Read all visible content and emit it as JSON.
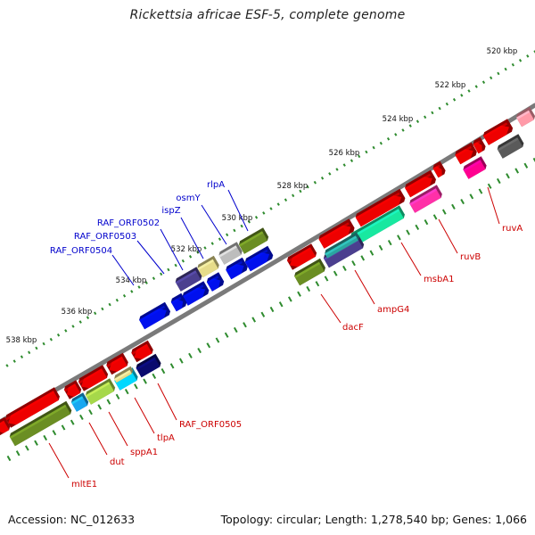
{
  "title": "Rickettsia africae ESF-5, complete genome",
  "footer": {
    "accession": "Accession: NC_012633",
    "summary": "Topology: circular; Length: 1,278,540 bp; Genes: 1,066"
  },
  "colors": {
    "backbone": "#7a7a7a",
    "tick": "#2e8b2e",
    "forward_label": "#0000cc",
    "reverse_label": "#cc0000",
    "red": "#ee0000",
    "blue": "#0010ee",
    "olive": "#6b8e23",
    "slate": "#4b3f8f",
    "khaki": "#e6dc8a",
    "gray": "#bdbdbd",
    "navy": "#0a0a6e",
    "cyan": "#00d8ff",
    "deepskyblue": "#18a8f0",
    "yellowgreen": "#a6d84a",
    "aquamarine": "#18e8a0",
    "hotpink": "#ff30a8",
    "deeppink": "#ff0090",
    "darkgray": "#5a5a5a",
    "pink": "#ff9aa8",
    "teal": "#2aa6a0"
  },
  "scale_labels": [
    {
      "id": "520",
      "text": "520 kbp"
    },
    {
      "id": "522",
      "text": "522 kbp"
    },
    {
      "id": "524",
      "text": "524 kbp"
    },
    {
      "id": "526",
      "text": "526 kbp"
    },
    {
      "id": "528",
      "text": "528 kbp"
    },
    {
      "id": "530",
      "text": "530 kbp"
    },
    {
      "id": "532",
      "text": "532 kbp"
    },
    {
      "id": "534",
      "text": "534 kbp"
    },
    {
      "id": "536",
      "text": "536 kbp"
    },
    {
      "id": "538",
      "text": "538 kbp"
    }
  ],
  "forward_gene_labels": [
    "rlpA",
    "osmY",
    "ispZ",
    "RAF_ORF0502",
    "RAF_ORF0503",
    "RAF_ORF0504"
  ],
  "reverse_gene_labels": [
    "ruvA",
    "ruvB",
    "msbA1",
    "ampG4",
    "dacF",
    "RAF_ORF0505",
    "tlpA",
    "sppA1",
    "dut",
    "mltE1"
  ]
}
